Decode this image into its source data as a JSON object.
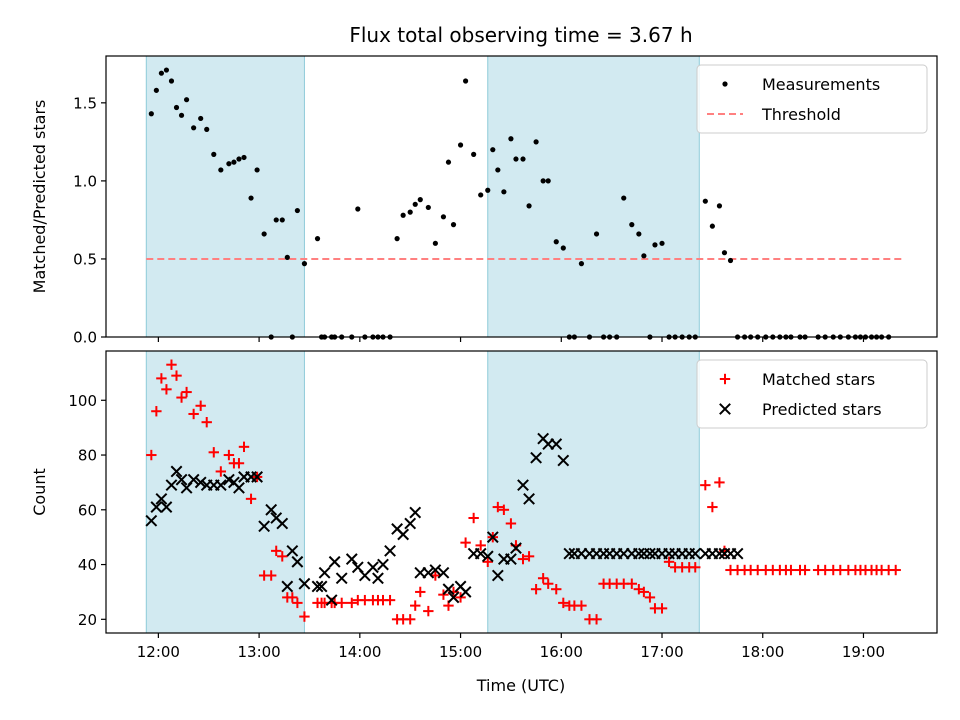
{
  "chart_data": {
    "type": "scatter",
    "title": "Flux total observing time = 3.67 h",
    "xlabel": "Time (UTC)",
    "x_ticks": [
      "12:00",
      "13:00",
      "14:00",
      "15:00",
      "16:00",
      "17:00",
      "18:00",
      "19:00"
    ],
    "xlim_hours": [
      11.48,
      19.73
    ],
    "shaded_intervals": [
      [
        11.88,
        13.45
      ],
      [
        15.27,
        17.37
      ]
    ],
    "shade_color": "#add8e6",
    "panels": [
      {
        "ylabel": "Matched/Predicted stars",
        "ylim": [
          0,
          1.8
        ],
        "y_ticks": [
          "0.0",
          "0.5",
          "1.0",
          "1.5"
        ],
        "y_tick_values": [
          0,
          0.5,
          1.0,
          1.5
        ],
        "legend": {
          "placement": "upper right",
          "entries": [
            "Measurements",
            "Threshold"
          ]
        },
        "threshold": {
          "name": "Threshold",
          "value": 0.5,
          "x_range": [
            11.88,
            19.38
          ],
          "color": "#ff8080"
        },
        "series": [
          {
            "name": "Measurements",
            "marker": "dot",
            "color": "#000000",
            "x": [
              11.93,
              11.98,
              12.03,
              12.08,
              12.13,
              12.18,
              12.23,
              12.28,
              12.35,
              12.42,
              12.48,
              12.55,
              12.62,
              12.7,
              12.75,
              12.8,
              12.85,
              12.92,
              12.98,
              13.05,
              13.12,
              13.17,
              13.23,
              13.28,
              13.33,
              13.38,
              13.45,
              13.58,
              13.62,
              13.65,
              13.72,
              13.75,
              13.82,
              13.92,
              13.98,
              14.05,
              14.13,
              14.18,
              14.23,
              14.3,
              14.37,
              14.43,
              14.5,
              14.55,
              14.6,
              14.68,
              14.75,
              14.83,
              14.88,
              14.93,
              15.0,
              15.05,
              15.13,
              15.2,
              15.27,
              15.32,
              15.37,
              15.43,
              15.5,
              15.55,
              15.62,
              15.68,
              15.75,
              15.82,
              15.87,
              15.95,
              16.02,
              16.08,
              16.13,
              16.2,
              16.28,
              16.35,
              16.42,
              16.48,
              16.55,
              16.62,
              16.7,
              16.77,
              16.82,
              16.88,
              16.93,
              17.0,
              17.07,
              17.13,
              17.2,
              17.27,
              17.33,
              17.43,
              17.5,
              17.57,
              17.62,
              17.68,
              17.75,
              17.82,
              17.88,
              17.95,
              18.03,
              18.1,
              18.17,
              18.23,
              18.28,
              18.37,
              18.42,
              18.55,
              18.62,
              18.7,
              18.77,
              18.85,
              18.92,
              18.97,
              19.02,
              19.08,
              19.13,
              19.18,
              19.25
            ],
            "y": [
              1.43,
              1.58,
              1.69,
              1.71,
              1.64,
              1.47,
              1.42,
              1.52,
              1.34,
              1.4,
              1.33,
              1.17,
              1.07,
              1.11,
              1.12,
              1.14,
              1.15,
              0.89,
              1.07,
              0.66,
              0.0,
              0.75,
              0.75,
              0.51,
              0.0,
              0.81,
              0.47,
              0.63,
              0.0,
              0.0,
              0.0,
              0.0,
              0.0,
              0.0,
              0.82,
              0.0,
              0.0,
              0.0,
              0.0,
              0.0,
              0.63,
              0.78,
              0.8,
              0.85,
              0.88,
              0.83,
              0.6,
              0.77,
              1.12,
              0.72,
              1.23,
              1.64,
              1.17,
              0.91,
              0.94,
              1.2,
              1.07,
              0.93,
              1.27,
              1.14,
              1.14,
              0.84,
              1.25,
              1.0,
              1.0,
              0.61,
              0.57,
              0.0,
              0.0,
              0.47,
              0.0,
              0.66,
              0.0,
              0.0,
              0.0,
              0.89,
              0.72,
              0.66,
              0.52,
              0.0,
              0.59,
              0.6,
              0.0,
              0.0,
              0.0,
              0.0,
              0.0,
              0.87,
              0.71,
              0.84,
              0.54,
              0.49,
              0.0,
              0.0,
              0.0,
              0.0,
              0.0,
              0.0,
              0.0,
              0.0,
              0.0,
              0.0,
              0.0,
              0.0,
              0.0,
              0.0,
              0.0,
              0.0,
              0.0,
              0.0,
              0.0,
              0.0,
              0.0,
              0.0,
              0.0
            ],
            "x_note": ""
          }
        ]
      },
      {
        "ylabel": "Count",
        "ylim": [
          15,
          118
        ],
        "y_ticks": [
          "20",
          "40",
          "60",
          "80",
          "100"
        ],
        "y_tick_values": [
          20,
          40,
          60,
          80,
          100
        ],
        "legend": {
          "placement": "upper right",
          "entries": [
            "Matched stars",
            "Predicted stars"
          ]
        },
        "series": [
          {
            "name": "Matched stars",
            "marker": "plus",
            "color": "#ff0000",
            "x": [
              11.93,
              11.98,
              12.03,
              12.08,
              12.13,
              12.18,
              12.23,
              12.28,
              12.35,
              12.42,
              12.48,
              12.55,
              12.62,
              12.7,
              12.75,
              12.8,
              12.85,
              12.92,
              12.98,
              13.05,
              13.12,
              13.17,
              13.23,
              13.28,
              13.33,
              13.38,
              13.45,
              13.58,
              13.62,
              13.65,
              13.72,
              13.75,
              13.82,
              13.92,
              13.98,
              14.05,
              14.13,
              14.18,
              14.23,
              14.3,
              14.37,
              14.43,
              14.5,
              14.55,
              14.6,
              14.68,
              14.75,
              14.83,
              14.88,
              14.93,
              15.0,
              15.05,
              15.13,
              15.2,
              15.27,
              15.32,
              15.37,
              15.43,
              15.5,
              15.55,
              15.62,
              15.68,
              15.75,
              15.82,
              15.87,
              15.95,
              16.02,
              16.08,
              16.13,
              16.2,
              16.28,
              16.35,
              16.42,
              16.48,
              16.55,
              16.62,
              16.7,
              16.77,
              16.82,
              16.88,
              16.93,
              17.0,
              17.07,
              17.13,
              17.2,
              17.27,
              17.33,
              17.43,
              17.5,
              17.57,
              17.62,
              17.68,
              17.75,
              17.82,
              17.88,
              17.95,
              18.03,
              18.1,
              18.17,
              18.23,
              18.28,
              18.37,
              18.42,
              18.55,
              18.62,
              18.7,
              18.77,
              18.85,
              18.92,
              18.97,
              19.02,
              19.08,
              19.13,
              19.18,
              19.25,
              19.32
            ],
            "y": [
              80,
              96,
              108,
              104,
              113,
              109,
              101,
              103,
              95,
              98,
              92,
              81,
              74,
              80,
              77,
              77,
              83,
              64,
              72,
              36,
              36,
              45,
              43,
              28,
              28,
              26,
              21,
              26,
              26,
              26,
              26,
              26,
              26,
              26,
              27,
              27,
              27,
              27,
              27,
              27,
              20,
              20,
              20,
              25,
              30,
              23,
              36,
              29,
              25,
              30,
              28,
              48,
              57,
              47,
              41,
              50,
              61,
              60,
              55,
              47,
              42,
              43,
              31,
              35,
              33,
              31,
              26,
              25,
              25,
              25,
              20,
              20,
              33,
              33,
              33,
              33,
              33,
              31,
              30,
              28,
              24,
              24,
              41,
              39,
              39,
              39,
              39,
              69,
              61,
              70,
              45,
              38,
              38,
              38,
              38,
              38,
              38,
              38,
              38,
              38,
              38,
              38,
              38,
              38,
              38,
              38,
              38,
              38,
              38,
              38,
              38,
              38,
              38,
              38,
              38,
              38
            ],
            "x_note": ""
          },
          {
            "name": "Predicted stars",
            "marker": "x",
            "color": "#000000",
            "x": [
              11.93,
              11.98,
              12.03,
              12.08,
              12.13,
              12.18,
              12.23,
              12.28,
              12.35,
              12.42,
              12.48,
              12.55,
              12.62,
              12.7,
              12.75,
              12.8,
              12.85,
              12.92,
              12.98,
              13.05,
              13.12,
              13.17,
              13.23,
              13.28,
              13.33,
              13.38,
              13.45,
              13.58,
              13.62,
              13.65,
              13.72,
              13.75,
              13.82,
              13.92,
              13.98,
              14.05,
              14.13,
              14.18,
              14.23,
              14.3,
              14.37,
              14.43,
              14.5,
              14.55,
              14.6,
              14.68,
              14.75,
              14.83,
              14.88,
              14.93,
              15.0,
              15.05,
              15.13,
              15.2,
              15.27,
              15.32,
              15.37,
              15.43,
              15.5,
              15.55,
              15.62,
              15.68,
              15.75,
              15.82,
              15.87,
              15.95,
              16.02,
              16.08,
              16.13,
              16.2,
              16.28,
              16.35,
              16.42,
              16.48,
              16.55,
              16.62,
              16.7,
              16.77,
              16.82,
              16.88,
              16.93,
              17.0,
              17.07,
              17.13,
              17.2,
              17.27,
              17.33,
              17.43,
              17.5,
              17.57,
              17.62,
              17.68,
              17.75
            ],
            "y": [
              56,
              61,
              64,
              61,
              69,
              74,
              71,
              68,
              71,
              70,
              69,
              69,
              69,
              71,
              70,
              68,
              72,
              72,
              72,
              54,
              60,
              57,
              55,
              32,
              45,
              41,
              33,
              32,
              32,
              37,
              27,
              41,
              35,
              42,
              39,
              36,
              39,
              35,
              40,
              45,
              53,
              51,
              55,
              59,
              37,
              37,
              38,
              37,
              31,
              28,
              32,
              30,
              44,
              44,
              43,
              50,
              36,
              42,
              42,
              46,
              69,
              64,
              79,
              86,
              84,
              84,
              78,
              44,
              44,
              44,
              44,
              44,
              44,
              44,
              44,
              44,
              44,
              44,
              44,
              44,
              44,
              44,
              44,
              44,
              44,
              44,
              44,
              44,
              44,
              44,
              44,
              44,
              44
            ],
            "x_note": ""
          }
        ]
      }
    ]
  }
}
